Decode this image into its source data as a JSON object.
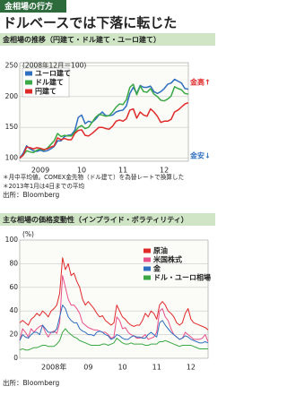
{
  "header": {
    "tag": "金相場の行方",
    "title": "ドルベースでは下落に転じた"
  },
  "chart_data": [
    {
      "type": "line",
      "title": "金相場の推移（円建て・ドル建て・ユーロ建て）",
      "y_label": "(2008年12月＝100)",
      "categories": [
        null,
        null,
        null,
        null,
        null,
        null,
        "2009",
        null,
        null,
        null,
        null,
        null,
        null,
        null,
        null,
        null,
        null,
        null,
        "10",
        null,
        null,
        null,
        null,
        null,
        null,
        null,
        null,
        null,
        null,
        null,
        "11",
        null,
        null,
        null,
        null,
        null,
        null,
        null,
        null,
        null,
        null,
        null,
        "12",
        null,
        null,
        null,
        null,
        null,
        null,
        null
      ],
      "series": [
        {
          "name": "ユーロ建て",
          "color": "#2f6fc0",
          "values": [
            100,
            108,
            120,
            115,
            112,
            111,
            113,
            111,
            112,
            115,
            119,
            128,
            128,
            135,
            137,
            138,
            145,
            166,
            170,
            156,
            160,
            158,
            163,
            170,
            175,
            169,
            169,
            170,
            175,
            177,
            178,
            185,
            205,
            215,
            205,
            218,
            215,
            215,
            217,
            208,
            205,
            208,
            213,
            220,
            222,
            228,
            225,
            222,
            213,
            212
          ]
        },
        {
          "name": "ドル建て",
          "color": "#3aa845",
          "values": [
            100,
            105,
            112,
            110,
            109,
            113,
            115,
            113,
            116,
            122,
            128,
            140,
            135,
            137,
            136,
            136,
            142,
            150,
            153,
            148,
            150,
            158,
            166,
            171,
            170,
            168,
            169,
            175,
            183,
            188,
            187,
            195,
            215,
            220,
            203,
            217,
            208,
            207,
            213,
            204,
            200,
            194,
            193,
            196,
            201,
            216,
            213,
            211,
            205,
            204
          ]
        },
        {
          "name": "円建て",
          "color": "#e02a2a",
          "values": [
            100,
            105,
            118,
            117,
            115,
            117,
            116,
            114,
            115,
            118,
            120,
            133,
            130,
            132,
            130,
            130,
            140,
            145,
            146,
            137,
            136,
            140,
            145,
            150,
            150,
            148,
            147,
            152,
            160,
            162,
            160,
            164,
            178,
            180,
            165,
            175,
            170,
            168,
            180,
            175,
            168,
            158,
            160,
            160,
            163,
            175,
            178,
            183,
            188,
            190
          ]
        }
      ],
      "ylim": [
        95,
        255
      ],
      "yticks": [
        100,
        150,
        200,
        250
      ],
      "grid": true,
      "legend": "upper left",
      "annotations": [
        {
          "text": "金高↑",
          "color": "#e02a2a"
        },
        {
          "text": "金安↓",
          "color": "#2f6fc0"
        }
      ],
      "notes": [
        "＊月中平均値。COMEX金先物（ドル建て）を為替レートで換算した",
        "＊2013年1月は4日までの平均"
      ],
      "source": "出所：Bloomberg"
    },
    {
      "type": "line",
      "title": "主な相場の価格変動性（インプライド・ボラティリティ）",
      "y_label": "(%)",
      "categories": [
        null,
        null,
        null,
        null,
        null,
        null,
        null,
        null,
        null,
        null,
        null,
        null,
        "2008年",
        null,
        null,
        null,
        null,
        null,
        null,
        null,
        null,
        null,
        null,
        null,
        "09",
        null,
        null,
        null,
        null,
        null,
        null,
        null,
        null,
        null,
        null,
        null,
        "10",
        null,
        null,
        null,
        null,
        null,
        null,
        null,
        null,
        null,
        null,
        null,
        "11",
        null,
        null,
        null,
        null,
        null,
        null,
        null,
        null,
        null,
        null,
        null,
        "12",
        null,
        null,
        null,
        null,
        null,
        null
      ],
      "series": [
        {
          "name": "原油",
          "color": "#e02a2a",
          "values": [
            30,
            32,
            30,
            28,
            33,
            35,
            38,
            36,
            40,
            38,
            35,
            40,
            42,
            45,
            55,
            85,
            75,
            80,
            70,
            72,
            65,
            60,
            50,
            45,
            48,
            45,
            42,
            38,
            35,
            36,
            32,
            30,
            28,
            30,
            45,
            40,
            35,
            33,
            30,
            28,
            27,
            28,
            28,
            32,
            38,
            35,
            40,
            38,
            33,
            45,
            48,
            45,
            40,
            38,
            35,
            30,
            28,
            30,
            38,
            42,
            33,
            30,
            29,
            28,
            27,
            26,
            24
          ]
        },
        {
          "name": "米国株式",
          "color": "#e8508a",
          "values": [
            15,
            25,
            22,
            18,
            25,
            22,
            25,
            27,
            28,
            22,
            18,
            22,
            23,
            21,
            30,
            70,
            60,
            50,
            45,
            45,
            42,
            38,
            30,
            28,
            26,
            25,
            24,
            24,
            23,
            22,
            22,
            20,
            17,
            18,
            35,
            32,
            25,
            26,
            22,
            20,
            19,
            17,
            17,
            18,
            20,
            16,
            17,
            18,
            22,
            40,
            42,
            35,
            32,
            25,
            20,
            18,
            16,
            17,
            22,
            20,
            18,
            16,
            16,
            16,
            17,
            20,
            14
          ]
        },
        {
          "name": "金",
          "color": "#2f6fc0",
          "values": [
            15,
            20,
            18,
            17,
            20,
            22,
            22,
            20,
            28,
            25,
            22,
            22,
            22,
            25,
            35,
            45,
            42,
            35,
            32,
            30,
            30,
            25,
            23,
            22,
            20,
            20,
            19,
            22,
            23,
            22,
            20,
            19,
            16,
            17,
            20,
            19,
            17,
            16,
            16,
            18,
            19,
            18,
            18,
            17,
            17,
            20,
            22,
            20,
            18,
            30,
            32,
            28,
            25,
            22,
            20,
            18,
            16,
            17,
            19,
            18,
            16,
            15,
            14,
            13,
            13,
            14,
            13
          ]
        },
        {
          "name": "ドル・ユーロ相場",
          "color": "#3aa845",
          "values": [
            7,
            8,
            7,
            7,
            8,
            9,
            9,
            10,
            11,
            11,
            10,
            10,
            10,
            12,
            15,
            22,
            25,
            22,
            20,
            18,
            17,
            15,
            14,
            13,
            12,
            11,
            11,
            11,
            11,
            12,
            12,
            11,
            12,
            13,
            17,
            15,
            13,
            12,
            12,
            13,
            12,
            12,
            12,
            12,
            11,
            11,
            12,
            12,
            12,
            14,
            14,
            15,
            14,
            13,
            12,
            11,
            10,
            11,
            11,
            11,
            11,
            10,
            9,
            8,
            8,
            8,
            8
          ]
        }
      ],
      "ylim": [
        0,
        100
      ],
      "yticks": [
        0,
        20,
        40,
        60,
        80,
        100
      ],
      "grid": true,
      "legend": "upper right",
      "source": "出所：Bloomberg"
    }
  ]
}
